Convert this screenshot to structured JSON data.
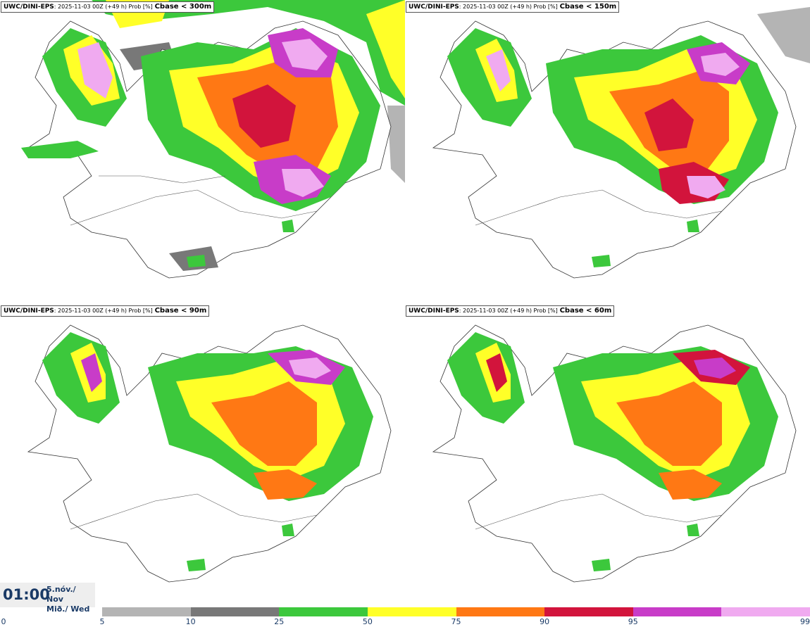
{
  "panels": [
    {
      "model": "UWC/DINI-EPS",
      "run_info": ": 2025-11-03 00Z (+49 h) Prob [%]",
      "threshold": "Cbase < 300m"
    },
    {
      "model": "UWC/DINI-EPS",
      "run_info": ": 2025-11-03 00Z (+49 h) Prob [%]",
      "threshold": "Cbase < 150m"
    },
    {
      "model": "UWC/DINI-EPS",
      "run_info": ": 2025-11-03 00Z (+49 h) Prob [%]",
      "threshold": "Cbase < 90m"
    },
    {
      "model": "UWC/DINI-EPS",
      "run_info": ": 2025-11-03 00Z (+49 h) Prob [%]",
      "threshold": "Cbase < 60m"
    }
  ],
  "valid_time": {
    "time": "01:00",
    "date_line1": "5.nóv./ Nov",
    "date_line2": "Mið./ Wed"
  },
  "colorbar": {
    "labels": [
      "0",
      "5",
      "10",
      "25",
      "50",
      "75",
      "90",
      "95",
      "99"
    ],
    "colors": [
      "#b4b4b4",
      "#787878",
      "#3cc83c",
      "#ffff28",
      "#ff7814",
      "#d2143c",
      "#c83cc8",
      "#f0aaf0"
    ]
  }
}
